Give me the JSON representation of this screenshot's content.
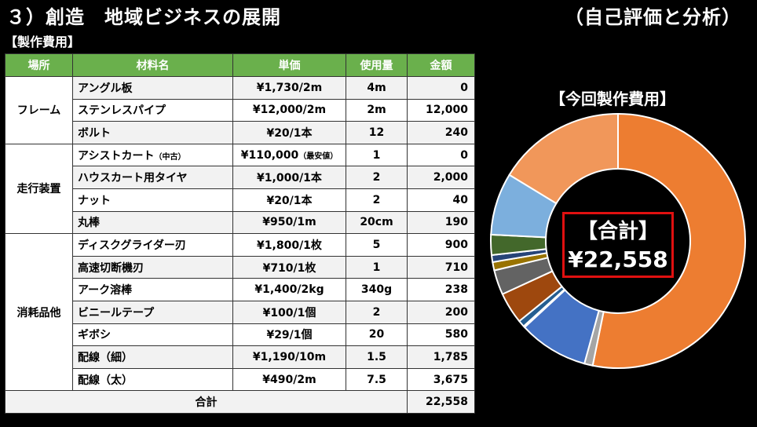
{
  "header": {
    "title": "３）創造　地域ビジネスの展開",
    "right": "（自己評価と分析）"
  },
  "section_label": "【製作費用】",
  "table": {
    "headers": [
      "場所",
      "材料名",
      "単価",
      "使用量",
      "金額"
    ],
    "groups": [
      {
        "location": "フレーム",
        "rows": [
          {
            "name": "アングル板",
            "name_note": "",
            "price": "¥1,730/2m",
            "price_note": "",
            "qty": "4m",
            "amount": "0"
          },
          {
            "name": "ステンレスパイプ",
            "name_note": "",
            "price": "¥12,000/2m",
            "price_note": "",
            "qty": "2m",
            "amount": "12,000"
          },
          {
            "name": "ボルト",
            "name_note": "",
            "price": "¥20/1本",
            "price_note": "",
            "qty": "12",
            "amount": "240"
          }
        ]
      },
      {
        "location": "走行装置",
        "rows": [
          {
            "name": "アシストカート",
            "name_note": "（中古）",
            "price": "¥110,000",
            "price_note": "（最安値）",
            "qty": "1",
            "amount": "0"
          },
          {
            "name": "ハウスカート用タイヤ",
            "name_note": "",
            "price": "¥1,000/1本",
            "price_note": "",
            "qty": "2",
            "amount": "2,000"
          },
          {
            "name": "ナット",
            "name_note": "",
            "price": "¥20/1本",
            "price_note": "",
            "qty": "2",
            "amount": "40"
          },
          {
            "name": "丸棒",
            "name_note": "",
            "price": "¥950/1m",
            "price_note": "",
            "qty": "20cm",
            "amount": "190"
          }
        ]
      },
      {
        "location": "消耗品他",
        "rows": [
          {
            "name": "ディスクグライダー刃",
            "name_note": "",
            "price": "¥1,800/1枚",
            "price_note": "",
            "qty": "5",
            "amount": "900"
          },
          {
            "name": "高速切断機刃",
            "name_note": "",
            "price": "¥710/1枚",
            "price_note": "",
            "qty": "1",
            "amount": "710"
          },
          {
            "name": "アーク溶棒",
            "name_note": "",
            "price": "¥1,400/2kg",
            "price_note": "",
            "qty": "340g",
            "amount": "238"
          },
          {
            "name": "ビニールテープ",
            "name_note": "",
            "price": "¥100/1個",
            "price_note": "",
            "qty": "2",
            "amount": "200"
          },
          {
            "name": "ギボシ",
            "name_note": "",
            "price": "¥29/1個",
            "price_note": "",
            "qty": "20",
            "amount": "580"
          },
          {
            "name": "配線（細）",
            "name_note": "",
            "price": "¥1,190/10m",
            "price_note": "",
            "qty": "1.5",
            "amount": "1,785"
          },
          {
            "name": "配線（太）",
            "name_note": "",
            "price": "¥490/2m",
            "price_note": "",
            "qty": "7.5",
            "amount": "3,675"
          }
        ]
      }
    ],
    "total_label": "合計",
    "total_amount": "22,558"
  },
  "chart_data": {
    "type": "pie",
    "title": "【今回製作費用】",
    "hole_label": "【合計】",
    "hole_value": "¥22,558",
    "slices": [
      {
        "label": "ステンレスパイプ",
        "value": 12000,
        "color": "#ed7d31"
      },
      {
        "label": "ボルト",
        "value": 240,
        "color": "#a5a5a5"
      },
      {
        "label": "ハウスカート用タイヤ",
        "value": 2000,
        "color": "#4472c4"
      },
      {
        "label": "ナット",
        "value": 40,
        "color": "#264478"
      },
      {
        "label": "丸棒",
        "value": 190,
        "color": "#255e91"
      },
      {
        "label": "ディスクグライダー刃",
        "value": 900,
        "color": "#9e480e"
      },
      {
        "label": "高速切断機刃",
        "value": 710,
        "color": "#636363"
      },
      {
        "label": "アーク溶棒",
        "value": 238,
        "color": "#997300"
      },
      {
        "label": "ビニールテープ",
        "value": 200,
        "color": "#264478"
      },
      {
        "label": "ギボシ",
        "value": 580,
        "color": "#43682b"
      },
      {
        "label": "配線（細）",
        "value": 1785,
        "color": "#7cafdd"
      },
      {
        "label": "配線（太）",
        "value": 3675,
        "color": "#f1975a"
      }
    ]
  }
}
